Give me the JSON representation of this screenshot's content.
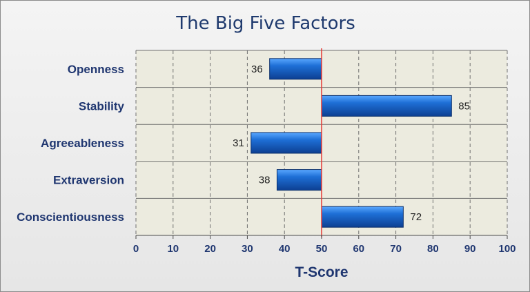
{
  "chart_data": {
    "type": "bar",
    "orientation": "horizontal",
    "title": "The Big Five Factors",
    "xlabel": "T-Score",
    "ylabel": "",
    "xlim": [
      0,
      100
    ],
    "xticks": [
      0,
      10,
      20,
      30,
      40,
      50,
      60,
      70,
      80,
      90,
      100
    ],
    "baseline": 50,
    "categories": [
      "Openness",
      "Stability",
      "Agreeableness",
      "Extraversion",
      "Conscientiousness"
    ],
    "values": [
      36,
      85,
      31,
      38,
      72
    ],
    "grid": "vertical dashed",
    "legend": "none",
    "colors": {
      "bar": "#1e6fd6",
      "bar_dark": "#0d3f92",
      "baseline": "#e53935",
      "plot_bg": "#ecebdf",
      "text": "#1f3670"
    }
  }
}
